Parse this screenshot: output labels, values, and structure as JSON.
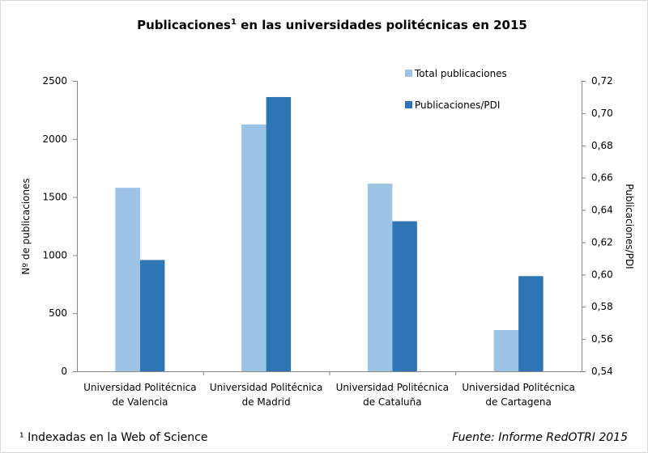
{
  "chart_data": {
    "type": "bar",
    "title": "Publicaciones",
    "title_superscript": "1",
    "title_rest": "en las universidades politécnicas en 2015",
    "categories": [
      [
        "Universidad Politécnica",
        "de Valencia"
      ],
      [
        "Universidad Politécnica",
        "de Madrid"
      ],
      [
        "Universidad Politécnica",
        "de Cataluña"
      ],
      [
        "Universidad Politécnica",
        "de Cartagena"
      ]
    ],
    "series": [
      {
        "name": "Total publicaciones",
        "axis": "left",
        "color": "#9DC3E6",
        "values": [
          1580,
          2125,
          1615,
          355
        ]
      },
      {
        "name": "Publicaciones/PDI",
        "axis": "right",
        "color": "#2E75B6",
        "values": [
          0.609,
          0.71,
          0.633,
          0.599
        ]
      }
    ],
    "ylabel": "Nº de publicaciones",
    "ylim": [
      0,
      2500
    ],
    "yticks": [
      "0",
      "500",
      "1000",
      "1500",
      "2000",
      "2500"
    ],
    "y2label": "Publicaciones/PDI",
    "y2lim": [
      0.54,
      0.72
    ],
    "y2ticks": [
      "0,54",
      "0,56",
      "0,58",
      "0,60",
      "0,62",
      "0,64",
      "0,66",
      "0,68",
      "0,70",
      "0,72"
    ],
    "grid": false,
    "legend": "top-right",
    "footnote": "¹ Indexadas en la Web of Science",
    "source": "Fuente: Informe RedOTRI 2015"
  }
}
